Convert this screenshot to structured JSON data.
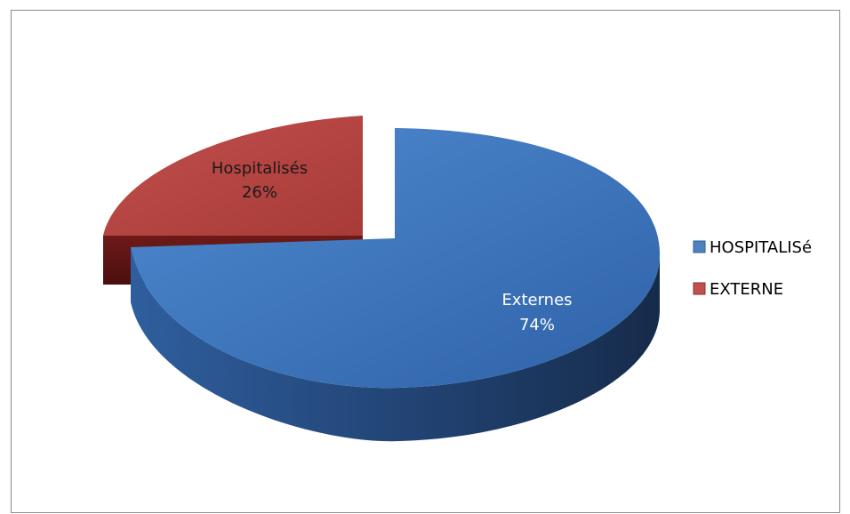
{
  "chart_data": {
    "type": "pie",
    "style": "3d-exploded",
    "title": "",
    "slices": [
      {
        "category": "Hospitalisés",
        "percent_label": "26%",
        "value": 26,
        "legend": "HOSPITALISé",
        "color": "#c0504d"
      },
      {
        "category": "Externes",
        "percent_label": "74%",
        "value": 74,
        "legend": "EXTERNE",
        "color": "#3f78c0"
      }
    ],
    "legend": {
      "placement": "right"
    }
  }
}
